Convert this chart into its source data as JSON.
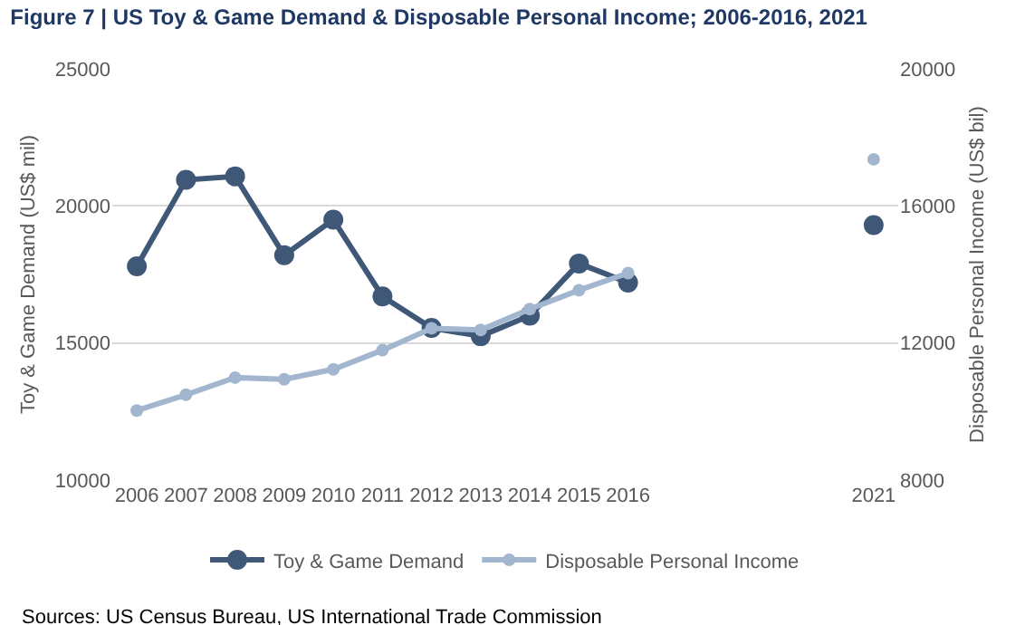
{
  "chart_data": {
    "type": "line",
    "title": "Figure 7 | US Toy & Game Demand & Disposable Personal Income; 2006-2016, 2021",
    "categories": [
      "2006",
      "2007",
      "2008",
      "2009",
      "2010",
      "2011",
      "2012",
      "2013",
      "2014",
      "2015",
      "2016",
      null,
      null,
      null,
      null,
      "2021"
    ],
    "ylabel": "Toy & Game Demand (US$ mil)",
    "y2label": "Disposable Personal Income (US$ bil)",
    "series": [
      {
        "name": "Toy & Game Demand",
        "color": "#3f5878",
        "values": [
          17800,
          20950,
          21080,
          18200,
          19500,
          16700,
          15550,
          15250,
          16000,
          17900,
          17200,
          null,
          null,
          null,
          null,
          19300
        ]
      },
      {
        "name": "Disposable Personal Income",
        "color": "#a3b6cf",
        "axis": "y2",
        "values": [
          10030,
          10490,
          10990,
          10940,
          11230,
          11790,
          12430,
          12380,
          12990,
          13540,
          14040,
          null,
          null,
          null,
          null,
          17360
        ]
      }
    ],
    "ylim": [
      10000,
      25000
    ],
    "yticks": [
      10000,
      15000,
      20000,
      25000
    ],
    "y2lim": [
      8000,
      20000
    ],
    "y2ticks": [
      8000,
      12000,
      16000,
      20000
    ],
    "grid": "y",
    "legend": "bottom",
    "marker": "circle",
    "line_style": "solid",
    "annotations": [
      "Sources: US Census Bureau, US International Trade Commission"
    ]
  }
}
